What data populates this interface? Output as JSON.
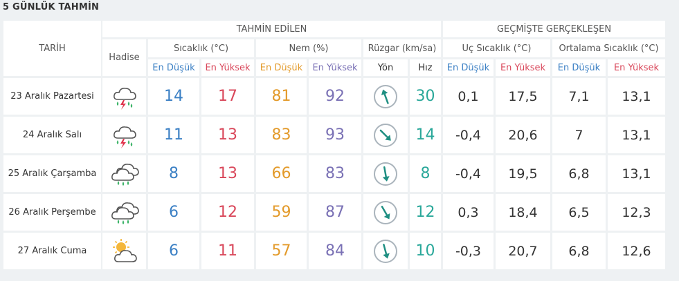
{
  "title": "5 GÜNLÜK TAHMİN",
  "headers": {
    "tarih": "TARİH",
    "hadise": "Hadise",
    "tahmin": "TAHMİN EDİLEN",
    "gecmis": "GEÇMİŞTE GERÇEKLEŞEN",
    "sicaklik": "Sıcaklık (°C)",
    "nem": "Nem (%)",
    "ruzgar": "Rüzgar (km/sa)",
    "uc_sicaklik": "Uç Sıcaklık (°C)",
    "ort_sicaklik": "Ortalama Sıcaklık (°C)",
    "en_dusuk": "En Düşük",
    "en_yuksek": "En Yüksek",
    "yon": "Yön",
    "hiz": "Hız"
  },
  "colors": {
    "low": "#3a7fc4",
    "high": "#d9475a",
    "hum_low": "#e39a2a",
    "hum_high": "#7a71b5",
    "wind": "#2aa89a"
  },
  "rows": [
    {
      "date": "23 Aralık Pazartesi",
      "icon": "thunderstorm-icon",
      "temp_low": "14",
      "temp_high": "17",
      "hum_low": "81",
      "hum_high": "92",
      "wind_dir_deg": 340,
      "wind_speed": "30",
      "ext_low": "0,1",
      "ext_high": "17,5",
      "avg_low": "7,1",
      "avg_high": "13,1"
    },
    {
      "date": "24 Aralık Salı",
      "icon": "thunderstorm-icon",
      "temp_low": "11",
      "temp_high": "13",
      "hum_low": "83",
      "hum_high": "93",
      "wind_dir_deg": 135,
      "wind_speed": "14",
      "ext_low": "-0,4",
      "ext_high": "20,6",
      "avg_low": "7",
      "avg_high": "13,1"
    },
    {
      "date": "25 Aralık Çarşamba",
      "icon": "rain-cloud-icon",
      "temp_low": "8",
      "temp_high": "13",
      "hum_low": "66",
      "hum_high": "83",
      "wind_dir_deg": 170,
      "wind_speed": "8",
      "ext_low": "-0,4",
      "ext_high": "19,5",
      "avg_low": "6,8",
      "avg_high": "13,1"
    },
    {
      "date": "26 Aralık Perşembe",
      "icon": "rain-cloud-icon",
      "temp_low": "6",
      "temp_high": "12",
      "hum_low": "59",
      "hum_high": "87",
      "wind_dir_deg": 150,
      "wind_speed": "12",
      "ext_low": "0,3",
      "ext_high": "18,4",
      "avg_low": "6,5",
      "avg_high": "12,3"
    },
    {
      "date": "27 Aralık Cuma",
      "icon": "partly-cloudy-icon",
      "temp_low": "6",
      "temp_high": "11",
      "hum_low": "57",
      "hum_high": "84",
      "wind_dir_deg": 165,
      "wind_speed": "10",
      "ext_low": "-0,3",
      "ext_high": "20,7",
      "avg_low": "6,8",
      "avg_high": "12,6"
    }
  ]
}
